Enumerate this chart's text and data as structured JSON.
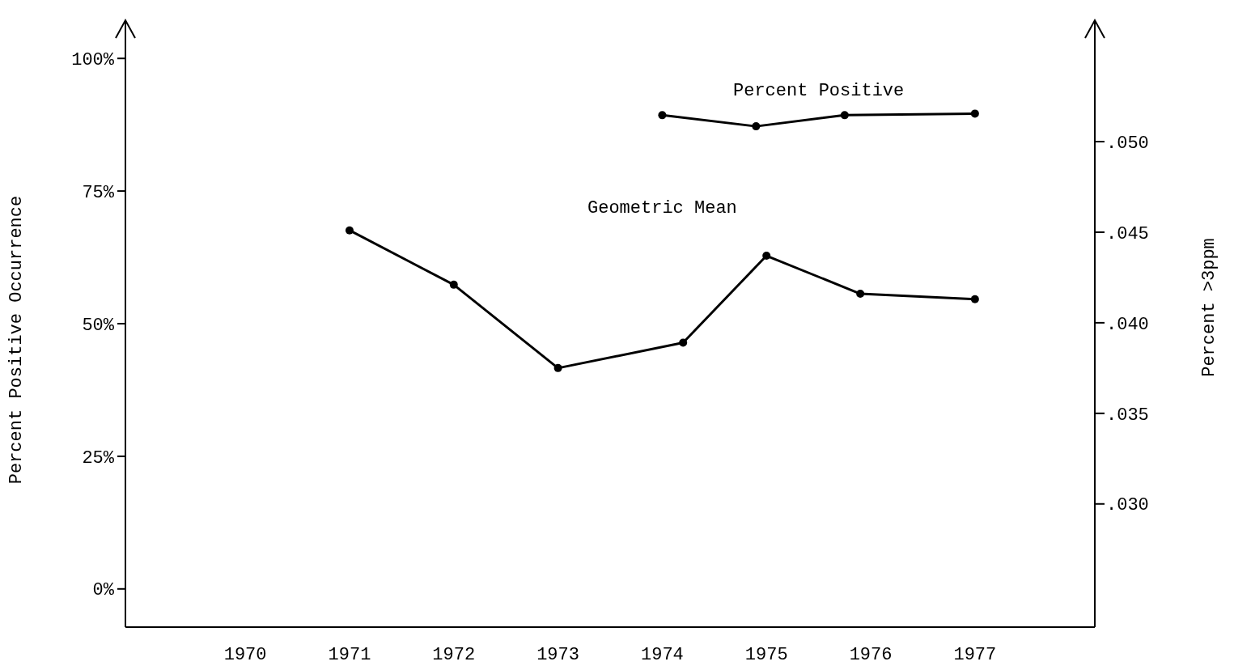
{
  "chart_data": {
    "type": "line",
    "xlabel": null,
    "ylabel": "Percent Positive Occurrence",
    "y2label": "Percent >3ppm",
    "x": [
      1971,
      1972,
      1973,
      1974.2,
      1975,
      1975.9,
      1977
    ],
    "xlim": [
      1968.85,
      1978.15
    ],
    "xticks": [
      1970,
      1971,
      1972,
      1973,
      1974,
      1975,
      1976,
      1977
    ],
    "ylim": [
      -7.2,
      107.2
    ],
    "yticks": [
      {
        "value": 0,
        "label": "0%"
      },
      {
        "value": 25,
        "label": "25%"
      },
      {
        "value": 50,
        "label": "50%"
      },
      {
        "value": 75,
        "label": "75%"
      },
      {
        "value": 100,
        "label": "100%"
      }
    ],
    "y2lim": [
      0.0232,
      0.0567
    ],
    "y2ticks": [
      {
        "value": 0.03,
        "label": ".030"
      },
      {
        "value": 0.035,
        "label": ".035"
      },
      {
        "value": 0.04,
        "label": ".040"
      },
      {
        "value": 0.045,
        "label": ".045"
      },
      {
        "value": 0.05,
        "label": ".050"
      }
    ],
    "series": [
      {
        "name": "Percent Positive",
        "color": "#000000",
        "x": [
          1974,
          1974.9,
          1975.75,
          1977
        ],
        "values": [
          89.3,
          87.2,
          89.3,
          89.6
        ]
      },
      {
        "name": "Geometric Mean",
        "color": "#000000",
        "axis": "y2",
        "values": [
          0.0451,
          0.0421,
          0.0375,
          0.0389,
          0.0437,
          0.0416,
          0.0413
        ]
      }
    ],
    "marker": "circle",
    "line_style": "solid",
    "grid": false
  }
}
